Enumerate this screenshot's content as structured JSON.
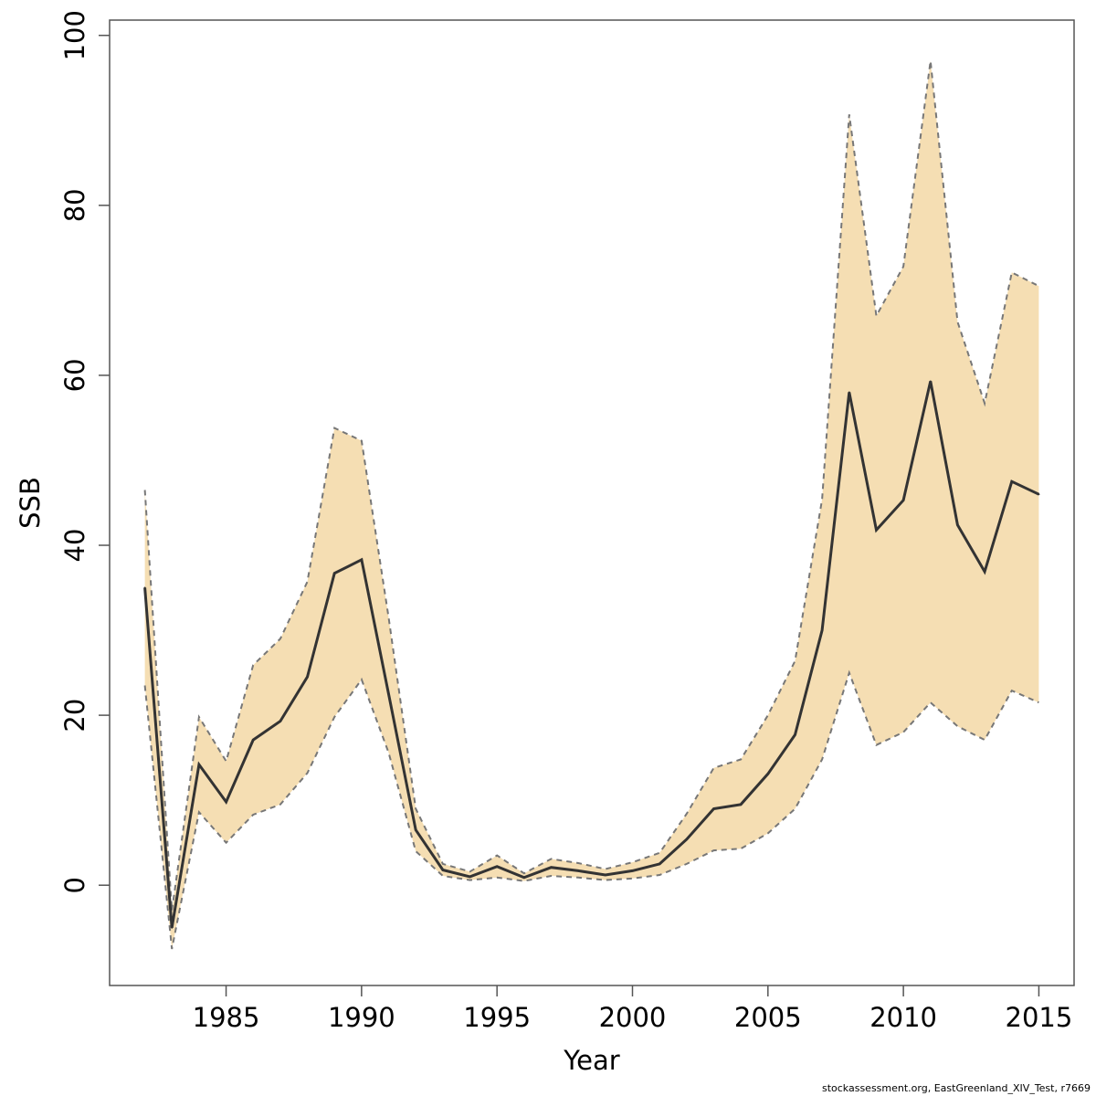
{
  "chart_data": {
    "type": "line",
    "title": "",
    "xlabel": "Year",
    "ylabel": "SSB",
    "xlim": [
      1980.7,
      2016.3
    ],
    "ylim": [
      -11.8,
      101.8
    ],
    "xticks": [
      1985,
      1990,
      1995,
      2000,
      2005,
      2010,
      2015
    ],
    "yticks": [
      0,
      20,
      40,
      60,
      80,
      100
    ],
    "grid": false,
    "legend": "none",
    "x": [
      1982,
      1983,
      1984,
      1985,
      1986,
      1987,
      1988,
      1989,
      1990,
      1991,
      1992,
      1993,
      1994,
      1995,
      1996,
      1997,
      1998,
      1999,
      2000,
      2001,
      2002,
      2003,
      2004,
      2005,
      2006,
      2007,
      2008,
      2009,
      2010,
      2011,
      2012,
      2013,
      2014,
      2015
    ],
    "series": [
      {
        "role": "estimate",
        "values": [
          35.0,
          -5.0,
          14.2,
          9.8,
          17.1,
          19.3,
          24.5,
          36.7,
          38.3,
          22.5,
          6.5,
          1.8,
          1.0,
          2.2,
          0.9,
          2.1,
          1.7,
          1.2,
          1.7,
          2.5,
          5.4,
          9.0,
          9.5,
          13.1,
          17.7,
          30.0,
          58.0,
          41.8,
          45.3,
          59.3,
          42.4,
          36.9,
          47.5,
          46.0
        ]
      },
      {
        "role": "upper",
        "values": [
          46.5,
          -3.0,
          19.8,
          14.6,
          25.9,
          29.0,
          35.7,
          53.8,
          52.3,
          31.5,
          9.0,
          2.5,
          1.6,
          3.5,
          1.4,
          3.1,
          2.6,
          1.9,
          2.7,
          3.8,
          8.4,
          13.8,
          14.8,
          20.0,
          26.4,
          45.4,
          90.7,
          67.0,
          72.8,
          97.0,
          66.3,
          56.7,
          72.1,
          70.5
        ]
      },
      {
        "role": "lower",
        "values": [
          23.5,
          -7.5,
          8.6,
          5.0,
          8.3,
          9.5,
          13.2,
          19.8,
          24.2,
          15.6,
          4.0,
          1.1,
          0.6,
          0.9,
          0.5,
          1.1,
          0.9,
          0.6,
          0.8,
          1.2,
          2.5,
          4.1,
          4.3,
          6.1,
          9.0,
          14.8,
          25.0,
          16.5,
          18.0,
          21.5,
          18.7,
          17.1,
          22.9,
          21.5
        ]
      }
    ],
    "colors": {
      "band": "#F5DEB3",
      "band_edge": "#777777",
      "line": "#333333",
      "axis": "#555555"
    }
  },
  "footer": "stockassessment.org, EastGreenland_XIV_Test, r7669"
}
